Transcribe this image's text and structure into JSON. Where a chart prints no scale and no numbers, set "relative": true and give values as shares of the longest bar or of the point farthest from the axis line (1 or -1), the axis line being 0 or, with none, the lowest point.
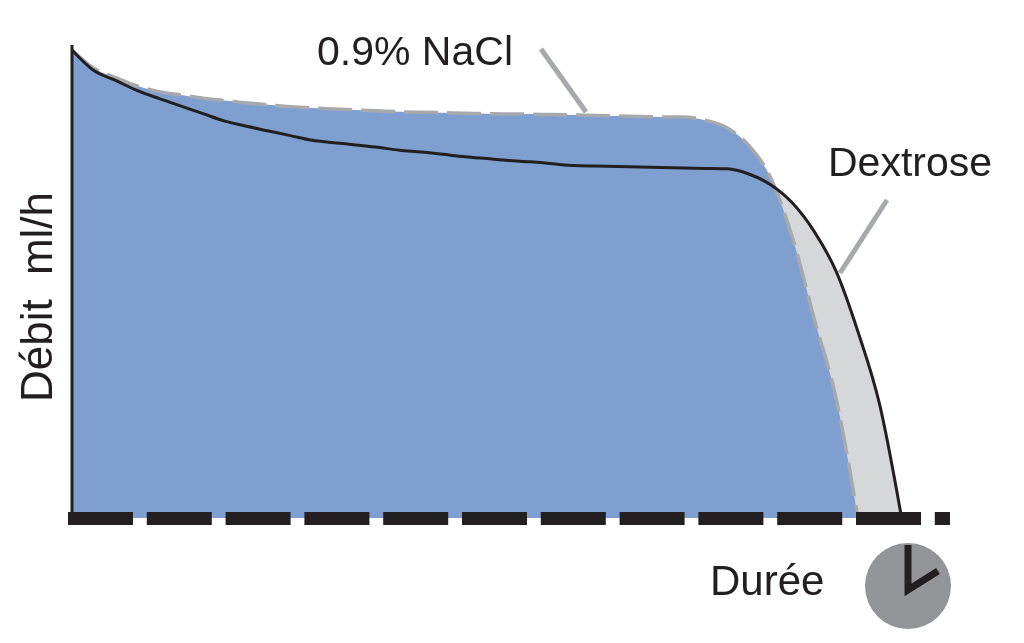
{
  "chart_data": {
    "type": "area",
    "relative": true,
    "xlabel": "Durée",
    "ylabel": "Débit ml/h",
    "categories": [
      null,
      null,
      null,
      null,
      null,
      null,
      null,
      null,
      null,
      null,
      null,
      null,
      null,
      null,
      null,
      null,
      null,
      null,
      null,
      null,
      null,
      null,
      null,
      null,
      null,
      null,
      null,
      null,
      null,
      null,
      null,
      null,
      null,
      null,
      null,
      null,
      null,
      null,
      null,
      null,
      null
    ],
    "series": [
      {
        "name": "0.9% NaCl",
        "color": "#7f9fd1",
        "line_style": "dashed",
        "values": [
          1,
          0.961,
          0.941,
          0.923,
          0.911,
          0.904,
          0.897,
          0.892,
          0.887,
          0.883,
          0.879,
          0.876,
          0.874,
          0.872,
          0.87,
          0.868,
          0.867,
          0.866,
          0.865,
          0.864,
          0.863,
          0.863,
          0.862,
          0.861,
          0.86,
          0.859,
          0.858,
          0.857,
          0.857,
          0.85,
          0.834,
          0.796,
          0.727,
          0.599,
          0.425,
          0.255,
          0,
          null,
          null,
          null,
          null
        ]
      },
      {
        "name": "Dextrose",
        "color": "#d6d7d9",
        "line_style": "solid",
        "values": [
          1,
          0.956,
          0.935,
          0.913,
          0.896,
          0.88,
          0.864,
          0.848,
          0.837,
          0.827,
          0.817,
          0.807,
          0.802,
          0.797,
          0.792,
          0.786,
          0.782,
          0.777,
          0.772,
          0.768,
          0.764,
          0.761,
          0.757,
          0.753,
          0.752,
          0.751,
          0.75,
          0.749,
          0.748,
          0.747,
          0.746,
          0.735,
          0.712,
          0.673,
          0.612,
          0.527,
          0.398,
          0.241,
          0,
          null,
          null
        ]
      }
    ]
  }
}
